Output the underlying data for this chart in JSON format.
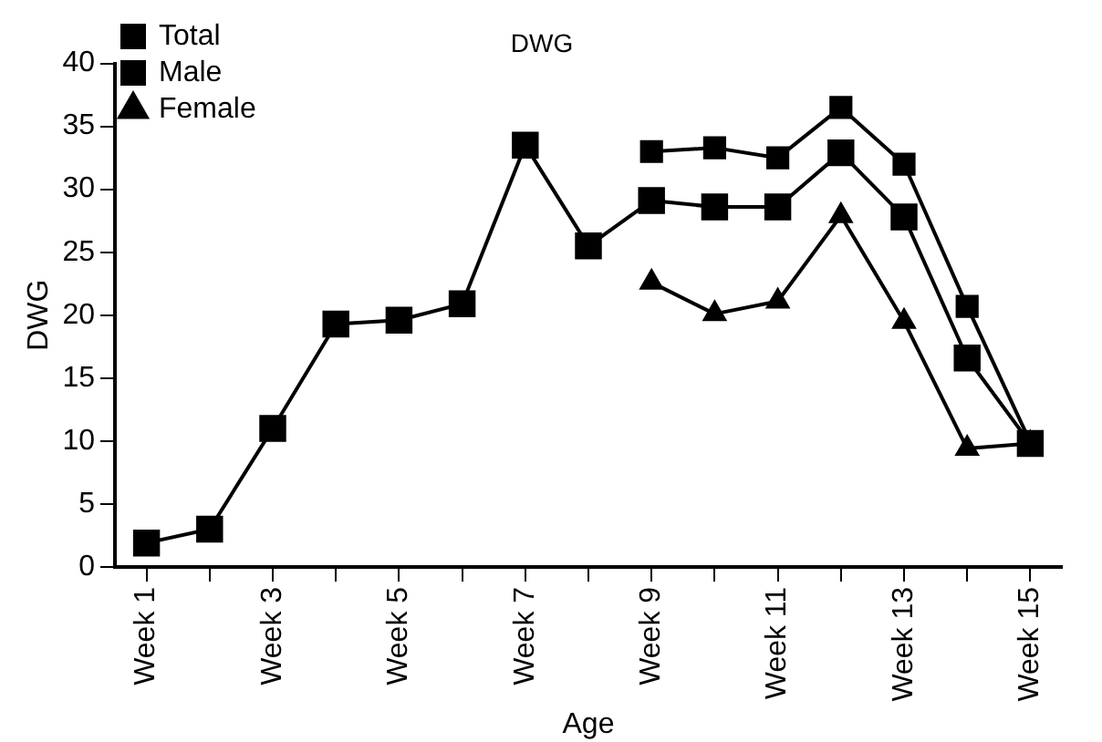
{
  "chart_data": {
    "type": "line",
    "title": "DWG",
    "xlabel": "Age",
    "ylabel": "DWG",
    "categories": [
      "Week 1",
      null,
      "Week 3",
      null,
      "Week 5",
      null,
      "Week 7",
      null,
      "Week 9",
      null,
      "Week 11",
      null,
      "Week 13",
      null,
      "Week 15"
    ],
    "ylim": [
      0,
      40
    ],
    "yticks": [
      0,
      5,
      10,
      15,
      20,
      25,
      30,
      35,
      40
    ],
    "series": [
      {
        "name": "Total",
        "color": "#000000",
        "marker": "square",
        "values": [
          1.9,
          3.0,
          11.0,
          19.3,
          19.6,
          20.9,
          33.5,
          25.5,
          29.1,
          28.6,
          28.6,
          32.9,
          27.8,
          16.6,
          9.8
        ]
      },
      {
        "name": "Male",
        "color": "#000000",
        "marker": "square",
        "values": [
          null,
          null,
          null,
          null,
          null,
          null,
          null,
          null,
          33.0,
          33.3,
          32.5,
          36.5,
          32.0,
          20.7,
          9.9
        ]
      },
      {
        "name": "Female",
        "color": "#000000",
        "marker": "triangle",
        "values": [
          null,
          null,
          null,
          null,
          null,
          null,
          null,
          null,
          22.6,
          20.1,
          21.1,
          27.9,
          19.5,
          9.4,
          9.8
        ]
      }
    ],
    "grid": false,
    "legend": "top left",
    "line_style": "solid"
  }
}
